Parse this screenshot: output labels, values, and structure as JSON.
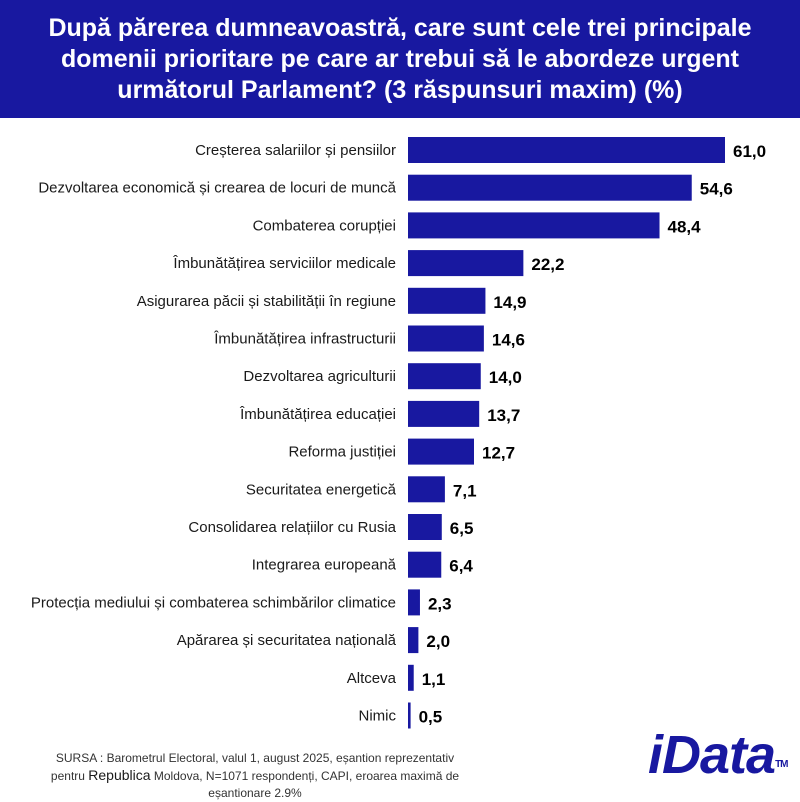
{
  "header": {
    "title": "După părerea dumneavoastră, care sunt cele trei principale domenii prioritare pe care ar trebui să le abordeze urgent următorul Parlament? (3 răspunsuri maxim) (%)"
  },
  "colors": {
    "bar": "#1818a0",
    "header_bg": "#1818a0",
    "logo_i": "#1818a0"
  },
  "chart_data": {
    "type": "bar",
    "orientation": "horizontal",
    "title": "După părerea dumneavoastră, care sunt cele trei principale domenii prioritare pe care ar trebui să le abordeze urgent următorul Parlament? (3 răspunsuri maxim) (%)",
    "categories": [
      "Creșterea salariilor și pensiilor",
      "Dezvoltarea economică și crearea de locuri de muncă",
      "Combaterea corupției",
      "Îmbunătățirea serviciilor medicale",
      "Asigurarea păcii și stabilității în regiune",
      "Îmbunătățirea infrastructurii",
      "Dezvoltarea agriculturii",
      "Îmbunătățirea educației",
      "Reforma justiției",
      "Securitatea energetică",
      "Consolidarea relațiilor cu Rusia",
      "Integrarea europeană",
      "Protecția mediului și combaterea schimbărilor climatice",
      "Apărarea și securitatea națională",
      "Altceva",
      "Nimic"
    ],
    "values": [
      61.0,
      54.6,
      48.4,
      22.2,
      14.9,
      14.6,
      14.0,
      13.7,
      12.7,
      7.1,
      6.5,
      6.4,
      2.3,
      2.0,
      1.1,
      0.5
    ],
    "value_labels": [
      "61,0",
      "54,6",
      "48,4",
      "22,2",
      "14,9",
      "14,6",
      "14,0",
      "13,7",
      "12,7",
      "7,1",
      "6,5",
      "6,4",
      "2,3",
      "2,0",
      "1,1",
      "0,5"
    ],
    "xlim": [
      0,
      61
    ],
    "grid": false,
    "legend": "none"
  },
  "source": {
    "line1": "SURSA : Barometrul Electoral, valul 1, august 2025, eșantion reprezentativ",
    "line2_pre": "pentru ",
    "line2_strong": "Republica",
    "line2_post": " Moldova, N=1071 respondenți, CAPI, eroarea maximă de",
    "line3": "eșantionare 2.9%"
  },
  "logo": {
    "i": "i",
    "rest": "Data",
    "tm": "TM"
  }
}
